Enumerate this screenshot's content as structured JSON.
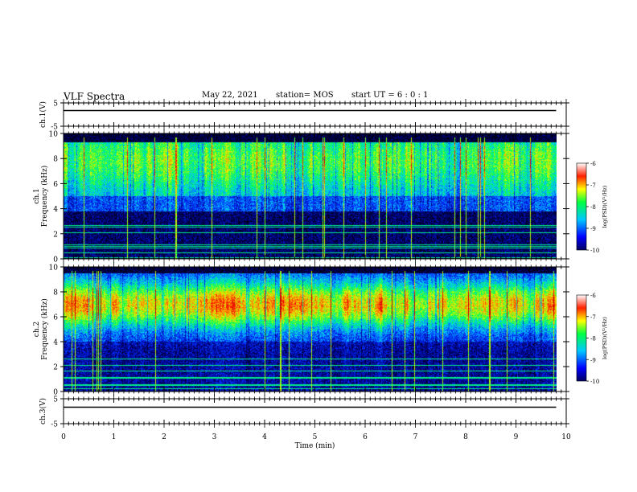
{
  "header": {
    "title": "VLF Spectra",
    "date": "May 22, 2021",
    "station": "station= MOS",
    "start_ut": "start  UT =  6 : 0  : 1"
  },
  "chart_data": [
    {
      "type": "line",
      "panel": "ch1-waveform",
      "ylabel": "ch.1(V)",
      "ylim": [
        -5,
        5
      ],
      "yticks": [
        5,
        -5
      ],
      "xlim": [
        0,
        10
      ],
      "series": [
        {
          "x": [
            0,
            9.8
          ],
          "values": [
            0,
            0
          ]
        }
      ]
    },
    {
      "type": "heatmap",
      "panel": "ch1-spectrogram",
      "ylabel": "ch.1\nFrequency (kHz)",
      "ylim": [
        0,
        10
      ],
      "yticks": [
        0,
        2,
        4,
        6,
        8,
        10
      ],
      "xlim": [
        0,
        10
      ],
      "data_xmax": 9.8,
      "colorbar": {
        "label": "log(PSD)(V²/Hz)",
        "range": [
          -10,
          -6
        ],
        "ticks": [
          -6,
          -7,
          -8,
          -9,
          -10
        ]
      }
    },
    {
      "type": "heatmap",
      "panel": "ch2-spectrogram",
      "ylabel": "ch.2\nFrequency (kHz)",
      "ylim": [
        0,
        10
      ],
      "yticks": [
        0,
        2,
        4,
        6,
        8,
        10
      ],
      "xlim": [
        0,
        10
      ],
      "data_xmax": 9.8,
      "colorbar": {
        "label": "log(PSD)(V²/Hz)",
        "range": [
          -10,
          -6
        ],
        "ticks": [
          -6,
          -7,
          -8,
          -9,
          -10
        ]
      }
    },
    {
      "type": "line",
      "panel": "ch3-waveform",
      "ylabel": "ch.3(V)",
      "ylim": [
        -5,
        5
      ],
      "yticks": [
        5,
        -5
      ],
      "xlim": [
        0,
        10
      ],
      "xticks": [
        0,
        1,
        2,
        3,
        4,
        5,
        6,
        7,
        8,
        9,
        10
      ],
      "xlabel": "Time  (min)",
      "series": [
        {
          "x": [
            0,
            9.8
          ],
          "values": [
            0,
            0
          ]
        }
      ]
    }
  ]
}
